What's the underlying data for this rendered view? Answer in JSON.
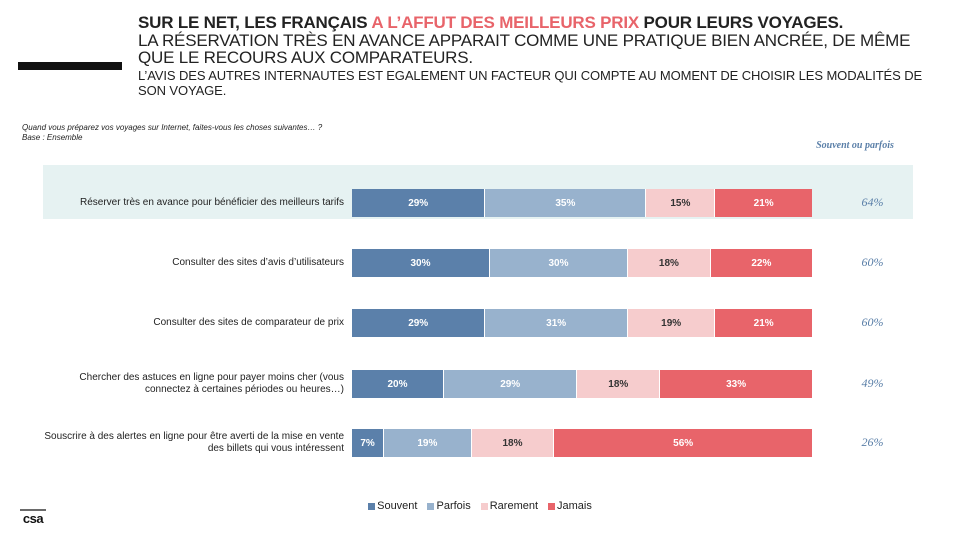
{
  "title": {
    "line1_part1": "SUR LE NET, LES FRANÇAIS ",
    "line1_accent": "A L’AFFUT DES MEILLEURS PRIX",
    "line1_part2": " POUR LEURS VOYAGES.",
    "line2": "LA RÉSERVATION TRÈS EN AVANCE APPARAIT COMME UNE PRATIQUE BIEN ANCRÉE, DE MÊME QUE LE RECOURS AUX COMPARATEURS.",
    "line3": "L’AVIS DES AUTRES INTERNAUTES EST EGALEMENT UN FACTEUR QUI COMPTE AU MOMENT DE CHOISIR LES MODALITÉS DE SON VOYAGE."
  },
  "question": "Quand vous préparez vos voyages sur Internet, faites-vous les choses suivantes… ?",
  "base": "Base : Ensemble",
  "souvent_parfois_header": "Souvent ou parfois",
  "logo_text": "csa",
  "colors": {
    "accent": "#e8646a",
    "souvent": "#5b80aa",
    "parfois": "#98b2cd",
    "rarement": "#f6cccd",
    "jamais": "#e8646a",
    "highlight": "#e6f2f2"
  },
  "chart_data": {
    "type": "bar",
    "orientation": "horizontal",
    "stacked": true,
    "normalized": true,
    "categories": [
      "Réserver très en avance pour bénéficier des meilleurs tarifs",
      "Consulter des sites d’avis d’utilisateurs",
      "Consulter des sites de comparateur de prix",
      "Chercher  des astuces en ligne pour payer moins cher (vous connectez à certaines périodes ou heures…)",
      "Souscrire à des alertes en ligne pour être averti de la mise en vente des billets qui vous intéressent"
    ],
    "series": [
      {
        "name": "Souvent",
        "values": [
          29,
          30,
          29,
          20,
          7
        ]
      },
      {
        "name": "Parfois",
        "values": [
          35,
          30,
          31,
          29,
          19
        ]
      },
      {
        "name": "Rarement",
        "values": [
          15,
          18,
          19,
          18,
          18
        ]
      },
      {
        "name": "Jamais",
        "values": [
          21,
          22,
          21,
          33,
          56
        ]
      }
    ],
    "labels": [
      [
        "29%",
        "35%",
        "15%",
        "21%"
      ],
      [
        "30%",
        "30%",
        "18%",
        "22%"
      ],
      [
        "29%",
        "31%",
        "19%",
        "21%"
      ],
      [
        "20%",
        "29%",
        "18%",
        "33%"
      ],
      [
        "7%",
        "19%",
        "18%",
        "56%"
      ]
    ],
    "souvent_ou_parfois": [
      "64%",
      "60%",
      "60%",
      "49%",
      "26%"
    ],
    "legend_position": "bottom"
  }
}
